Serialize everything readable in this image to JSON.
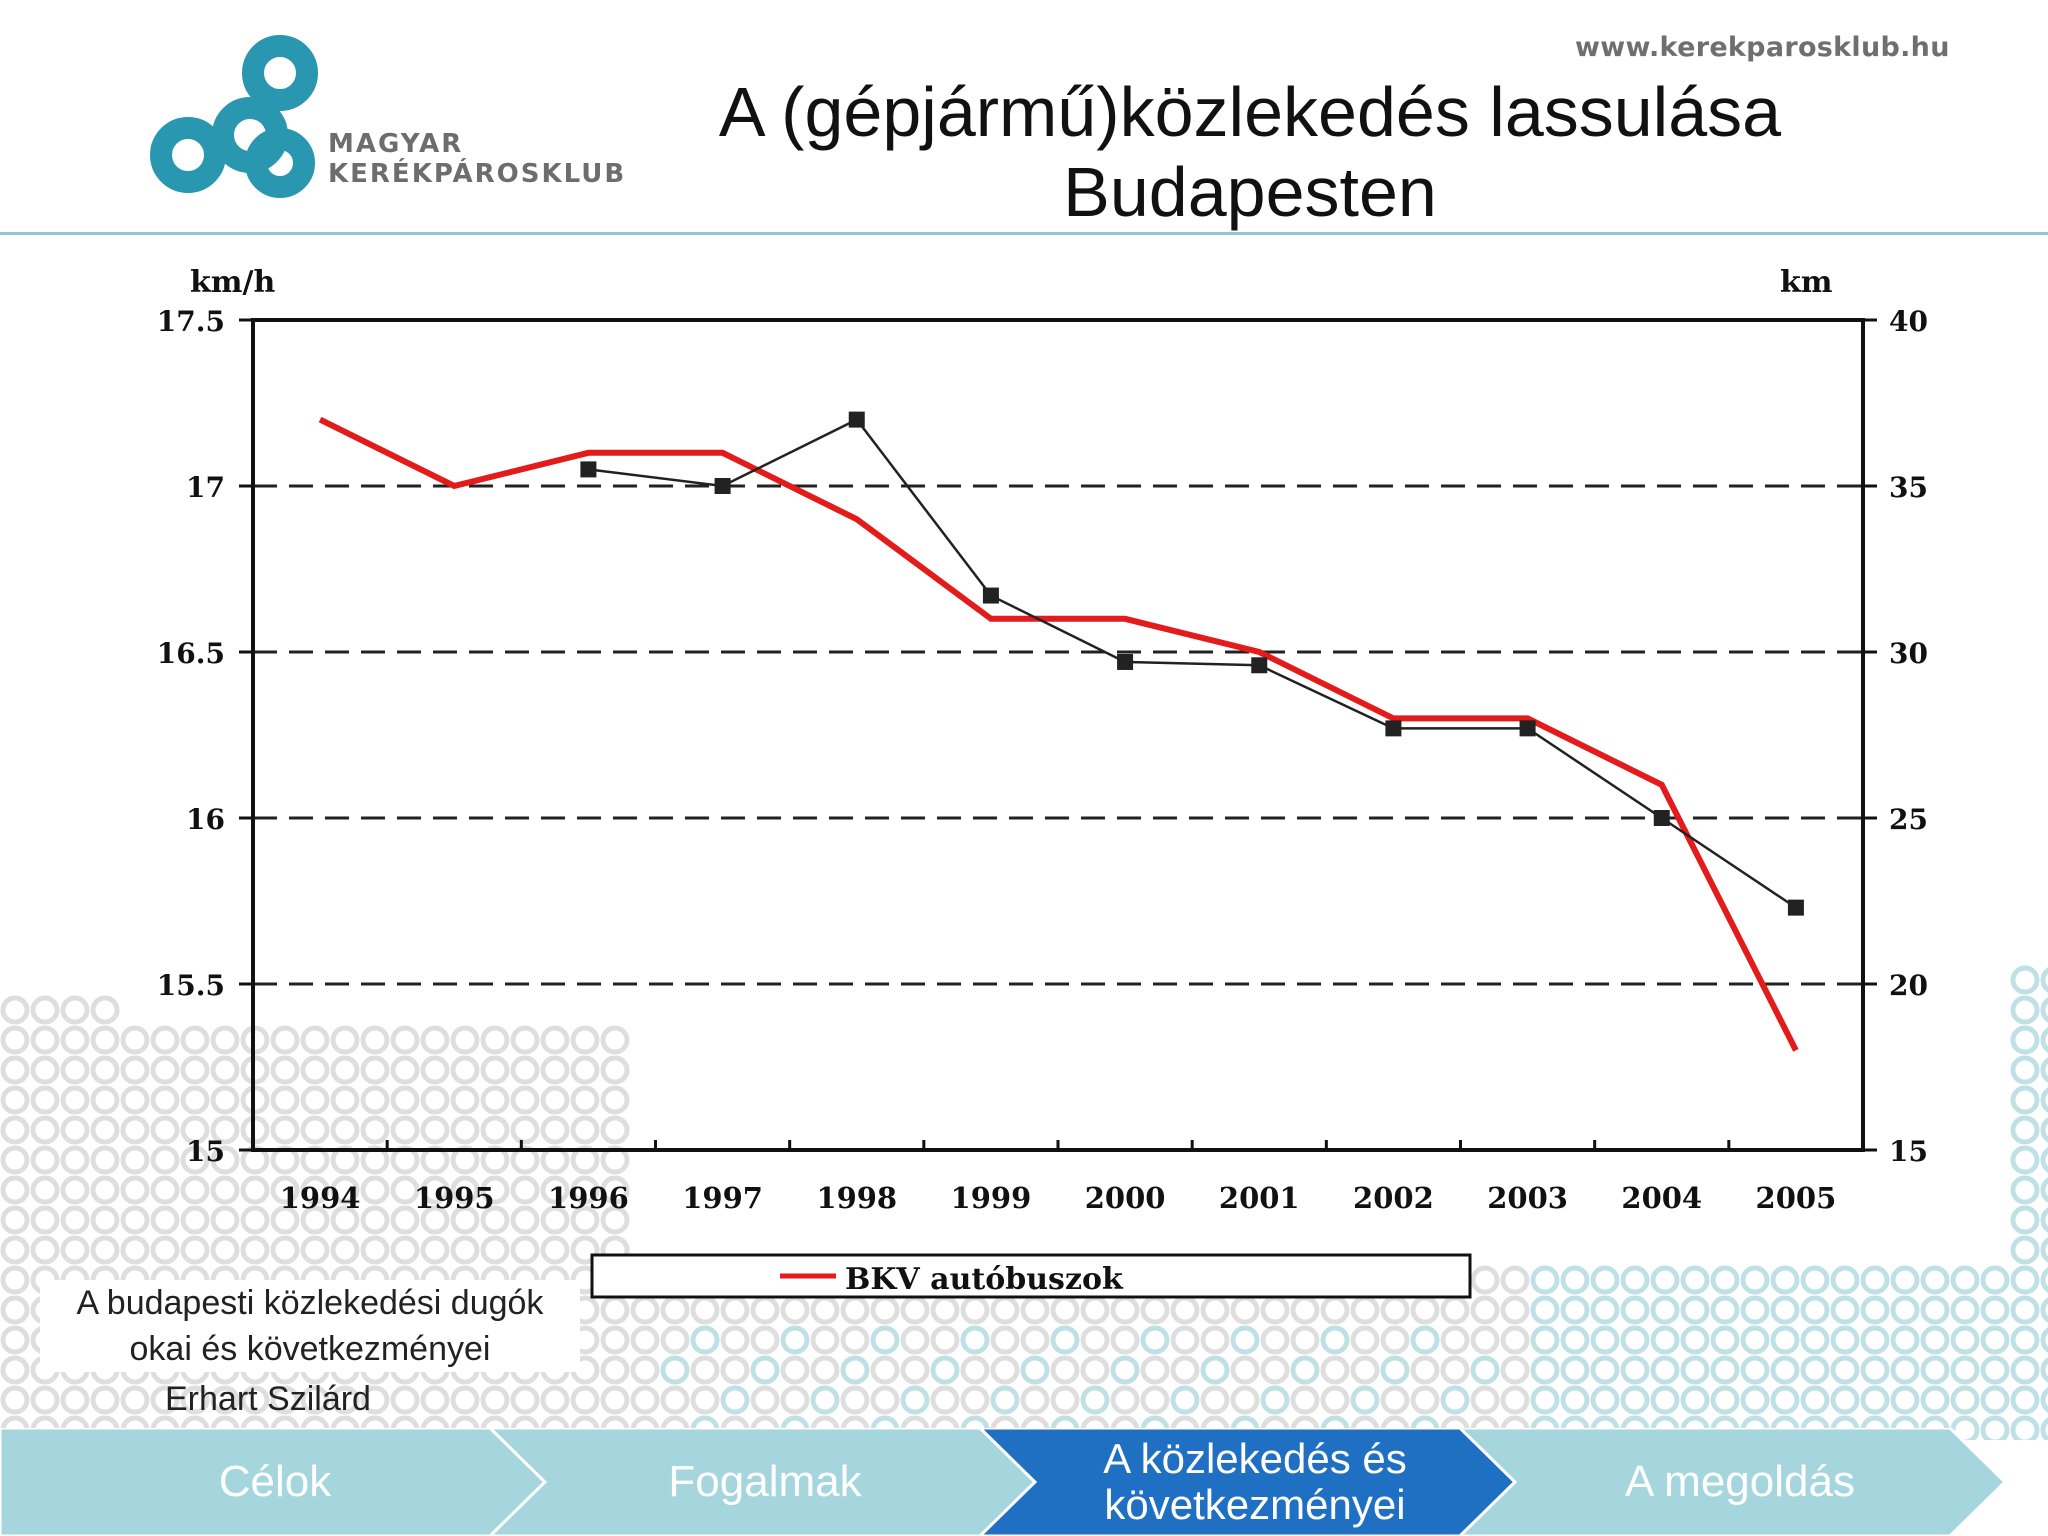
{
  "header": {
    "website": "www.kerekparosklub.hu",
    "title": "A (gépjármű)közlekedés lassulása Budapesten",
    "logo": {
      "icon": "three-rings-logo-icon",
      "line1": "MAGYAR",
      "line2": "KERÉKPÁROSKLUB",
      "color": "#2a97b1"
    }
  },
  "chart_data": {
    "type": "line",
    "categories": [
      "1994",
      "1995",
      "1996",
      "1997",
      "1998",
      "1999",
      "2000",
      "2001",
      "2002",
      "2003",
      "2004",
      "2005"
    ],
    "y_left": {
      "label": "km/h",
      "ylim": [
        15,
        17.5
      ],
      "ticks": [
        "15",
        "15.5",
        "16",
        "16.5",
        "17",
        "17.5"
      ]
    },
    "y_right": {
      "label": "km",
      "ylim": [
        15,
        40
      ],
      "ticks": [
        "15",
        "20",
        "25",
        "30",
        "35",
        "40"
      ]
    },
    "grid": "dashed horizontal",
    "series": [
      {
        "name": "BKV autóbuszok",
        "color": "#e31b1b",
        "values": [
          17.2,
          17.0,
          17.1,
          17.1,
          16.9,
          16.6,
          16.6,
          16.5,
          16.3,
          16.3,
          16.1,
          15.3
        ]
      },
      {
        "color": "#222222",
        "marker": "square",
        "values": [
          null,
          null,
          17.05,
          17.0,
          17.2,
          16.67,
          16.47,
          16.46,
          16.27,
          16.27,
          16.0,
          15.73
        ]
      }
    ],
    "legend": {
      "position": "bottom",
      "entries": [
        "BKV autóbuszok"
      ]
    }
  },
  "footer": {
    "source_line1": "A budapesti közlekedési dugók",
    "source_line2": "okai és következményei",
    "author": "Erhart Szilárd"
  },
  "nav": {
    "items": [
      {
        "label": "Célok",
        "active": false
      },
      {
        "label": "Fogalmak",
        "active": false
      },
      {
        "label": "A közlekedés és következményei",
        "active": true
      },
      {
        "label": "A megoldás",
        "active": false
      }
    ],
    "colors": {
      "inactive": "#a6d6dd",
      "active": "#1f6fc2"
    }
  }
}
